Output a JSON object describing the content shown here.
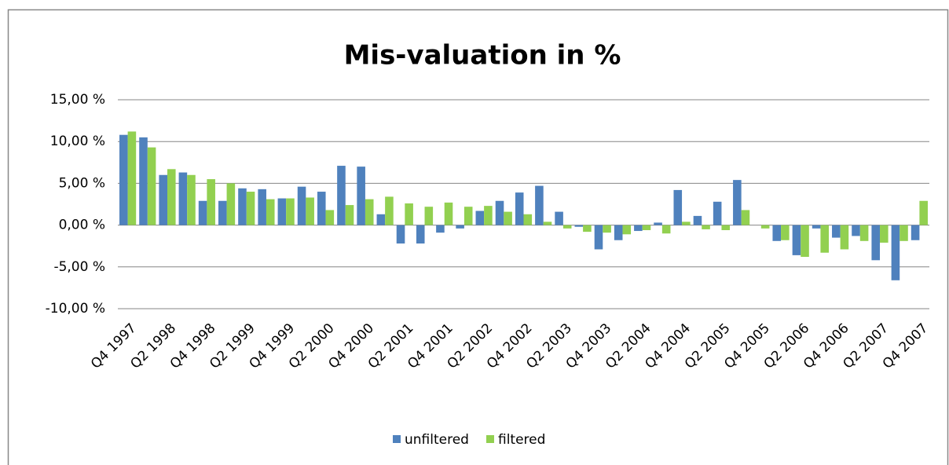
{
  "chart_data": {
    "type": "bar",
    "title": "Mis-valuation in %",
    "categories": [
      "Q4 1997",
      null,
      "Q2 1998",
      null,
      "Q4 1998",
      null,
      "Q2 1999",
      null,
      "Q4 1999",
      null,
      "Q2 2000",
      null,
      "Q4 2000",
      null,
      "Q2 2001",
      null,
      "Q4 2001",
      null,
      "Q2 2002",
      null,
      "Q4 2002",
      null,
      "Q2 2003",
      null,
      "Q4 2003",
      null,
      "Q2 2004",
      null,
      "Q4 2004",
      null,
      "Q2 2005",
      null,
      "Q4 2005",
      null,
      "Q2 2006",
      null,
      "Q4 2006",
      null,
      "Q2 2007",
      null,
      "Q4 2007"
    ],
    "series": [
      {
        "name": "unfiltered",
        "color": "#4f81bd",
        "values": [
          10.8,
          10.5,
          6.0,
          6.3,
          2.9,
          2.9,
          4.4,
          4.3,
          3.2,
          4.6,
          4.0,
          7.1,
          7.0,
          1.3,
          -2.2,
          -2.2,
          -0.9,
          -0.4,
          1.7,
          2.9,
          3.9,
          4.7,
          1.6,
          -0.2,
          -2.9,
          -1.8,
          -0.7,
          0.3,
          4.2,
          1.1,
          2.8,
          5.4,
          0,
          -1.9,
          -3.6,
          -0.4,
          -1.5,
          -1.3,
          -4.2,
          -6.6,
          -1.8
        ]
      },
      {
        "name": "filtered",
        "color": "#92d050",
        "values": [
          11.2,
          9.3,
          6.7,
          6.0,
          5.5,
          5.0,
          4.0,
          3.1,
          3.2,
          3.3,
          1.8,
          2.4,
          3.1,
          3.4,
          2.6,
          2.2,
          2.7,
          2.2,
          2.3,
          1.6,
          1.3,
          0.4,
          -0.4,
          -0.8,
          -0.9,
          -1.1,
          -0.6,
          -1.0,
          0.4,
          -0.5,
          -0.6,
          1.8,
          -0.4,
          -1.8,
          -3.8,
          -3.3,
          -2.9,
          -1.9,
          -2.1,
          -1.9,
          2.9
        ]
      }
    ],
    "ylim": [
      -10,
      15
    ],
    "yticks": [
      {
        "value": -10,
        "label": "-10,00 %"
      },
      {
        "value": -5,
        "label": "-5,00 %"
      },
      {
        "value": 0,
        "label": "0,00 %"
      },
      {
        "value": 5,
        "label": "5,00 %"
      },
      {
        "value": 10,
        "label": "10,00 %"
      },
      {
        "value": 15,
        "label": "15,00 %"
      }
    ],
    "grid": true,
    "legend": "bottom"
  }
}
